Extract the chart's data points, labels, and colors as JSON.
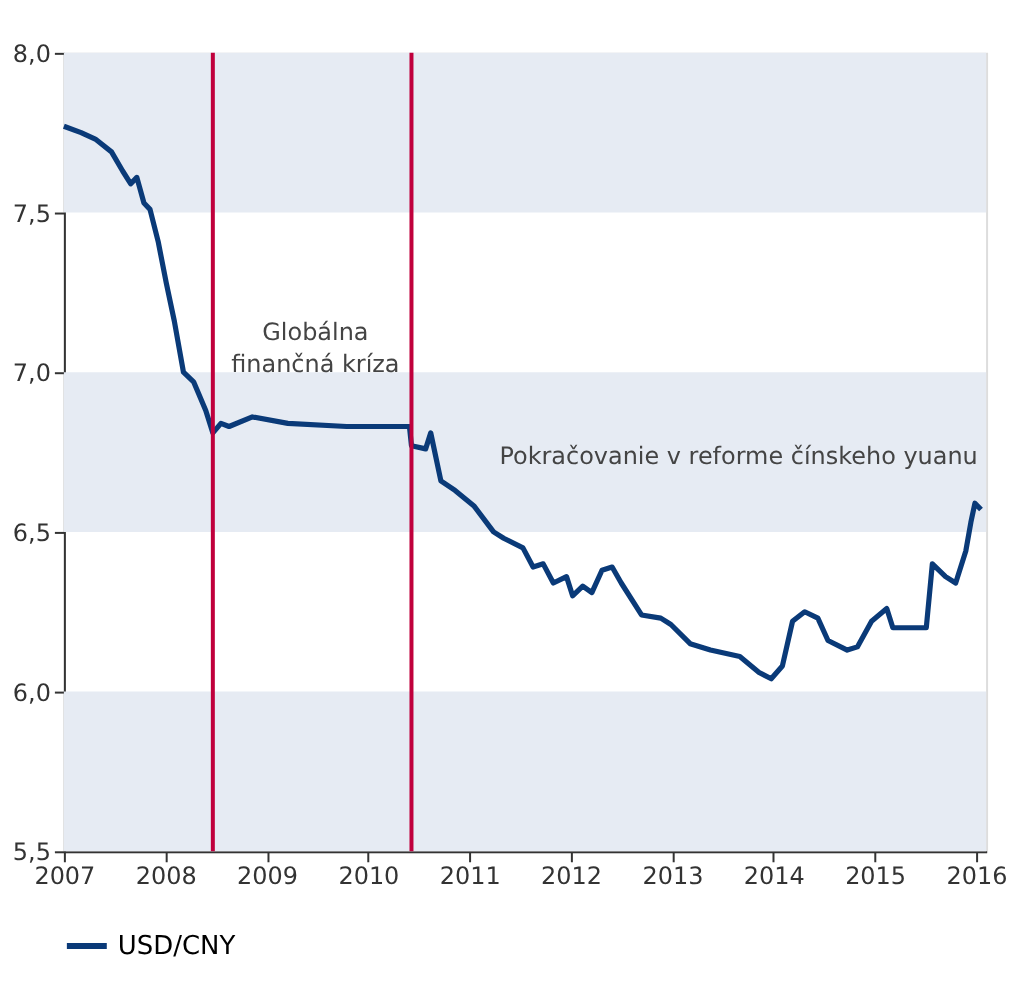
{
  "chart_data": {
    "type": "line",
    "x": [
      2007.0,
      2007.17,
      2007.31,
      2007.47,
      2007.58,
      2007.66,
      2007.72,
      2007.79,
      2007.85,
      2007.93,
      2008.01,
      2008.09,
      2008.18,
      2008.28,
      2008.4,
      2008.47,
      2008.55,
      2008.63,
      2008.86,
      2009.21,
      2009.79,
      2010.41,
      2010.43,
      2010.57,
      2010.62,
      2010.72,
      2010.86,
      2011.05,
      2011.24,
      2011.34,
      2011.53,
      2011.63,
      2011.73,
      2011.83,
      2011.96,
      2012.02,
      2012.12,
      2012.21,
      2012.31,
      2012.41,
      2012.5,
      2012.7,
      2012.89,
      2012.99,
      2013.18,
      2013.38,
      2013.67,
      2013.86,
      2013.98,
      2014.09,
      2014.19,
      2014.31,
      2014.44,
      2014.54,
      2014.73,
      2014.83,
      2014.97,
      2015.12,
      2015.18,
      2015.51,
      2015.57,
      2015.7,
      2015.8,
      2015.9,
      2015.95,
      2015.99,
      2016.05
    ],
    "series": [
      {
        "name": "USD/CNY",
        "color": "#0a3a78",
        "values": [
          7.77,
          7.75,
          7.73,
          7.69,
          7.63,
          7.59,
          7.61,
          7.53,
          7.51,
          7.41,
          7.28,
          7.16,
          7.0,
          6.97,
          6.88,
          6.81,
          6.84,
          6.83,
          6.86,
          6.84,
          6.83,
          6.83,
          6.77,
          6.76,
          6.81,
          6.66,
          6.63,
          6.58,
          6.5,
          6.48,
          6.45,
          6.39,
          6.4,
          6.34,
          6.36,
          6.3,
          6.33,
          6.31,
          6.38,
          6.39,
          6.34,
          6.24,
          6.23,
          6.21,
          6.15,
          6.13,
          6.11,
          6.06,
          6.04,
          6.08,
          6.22,
          6.25,
          6.23,
          6.16,
          6.13,
          6.14,
          6.22,
          6.26,
          6.2,
          6.2,
          6.4,
          6.36,
          6.34,
          6.44,
          6.53,
          6.59,
          6.57
        ]
      }
    ],
    "xlim": [
      2007,
      2016.1
    ],
    "xticks": [
      2007,
      2008,
      2009,
      2010,
      2011,
      2012,
      2013,
      2014,
      2015,
      2016
    ],
    "ylim": [
      5.5,
      8.0
    ],
    "yticks": [
      {
        "value": 5.5,
        "label": "5,5"
      },
      {
        "value": 6.0,
        "label": "6,0"
      },
      {
        "value": 6.5,
        "label": "6,5"
      },
      {
        "value": 7.0,
        "label": "7,0"
      },
      {
        "value": 7.5,
        "label": "7,5"
      },
      {
        "value": 8.0,
        "label": "8,0"
      }
    ],
    "bands": [
      {
        "axis": "y",
        "from": 7.5,
        "to": 8.0,
        "color": "#e6ebf3"
      },
      {
        "axis": "y",
        "from": 6.5,
        "to": 7.0,
        "color": "#e6ebf3"
      },
      {
        "axis": "y",
        "from": 5.5,
        "to": 6.0,
        "color": "#e6ebf3"
      }
    ],
    "ref_lines": [
      {
        "axis": "x",
        "value": 2008.47,
        "color": "#c0003c"
      },
      {
        "axis": "x",
        "value": 2010.43,
        "color": "#c0003c"
      }
    ],
    "annotations": [
      "Globálna\nfinančná kríza",
      "Pokračovanie v reforme čínskeho yuanu"
    ],
    "legend": "bottom",
    "grid": false,
    "line_style": "solid",
    "marker": "none"
  }
}
